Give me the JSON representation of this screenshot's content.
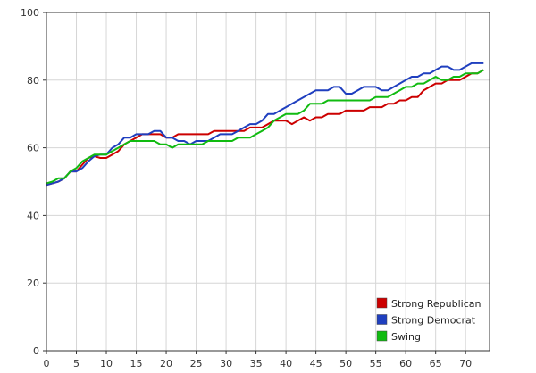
{
  "chart_data": {
    "type": "line",
    "title": "",
    "xlabel": "",
    "ylabel": "",
    "xlim": [
      0,
      74
    ],
    "ylim": [
      0,
      100
    ],
    "x_ticks": [
      0,
      5,
      10,
      15,
      20,
      25,
      30,
      35,
      40,
      45,
      50,
      55,
      60,
      65,
      70
    ],
    "y_ticks": [
      0,
      20,
      40,
      60,
      80,
      100
    ],
    "grid": true,
    "legend_position": "bottom-right",
    "series": [
      {
        "name": "Strong Republican",
        "color": "#cc0000",
        "x": [
          0,
          1,
          2,
          3,
          4,
          5,
          6,
          7,
          8,
          9,
          10,
          11,
          12,
          13,
          14,
          15,
          16,
          17,
          18,
          19,
          20,
          21,
          22,
          23,
          24,
          25,
          26,
          27,
          28,
          29,
          30,
          31,
          32,
          33,
          34,
          35,
          36,
          37,
          38,
          39,
          40,
          41,
          42,
          43,
          44,
          45,
          46,
          47,
          48,
          49,
          50,
          51,
          52,
          53,
          54,
          55,
          56,
          57,
          58,
          59,
          60,
          61,
          62,
          63,
          64,
          65,
          66,
          67,
          68,
          69,
          70,
          71,
          72,
          73
        ],
        "values": [
          49,
          49.5,
          50,
          51,
          53,
          53,
          55,
          57,
          57.5,
          57,
          57,
          58,
          59,
          61,
          62,
          63,
          64,
          64,
          64,
          64,
          63,
          63,
          64,
          64,
          64,
          64,
          64,
          64,
          65,
          65,
          65,
          65,
          65,
          65,
          66,
          66,
          66,
          67,
          68,
          68,
          68,
          67,
          68,
          69,
          68,
          69,
          69,
          70,
          70,
          70,
          71,
          71,
          71,
          71,
          72,
          72,
          72,
          73,
          73,
          74,
          74,
          75,
          75,
          77,
          78,
          79,
          79,
          80,
          80,
          80,
          81,
          82,
          82,
          83
        ]
      },
      {
        "name": "Strong Democrat",
        "color": "#1f3fbf",
        "x": [
          0,
          1,
          2,
          3,
          4,
          5,
          6,
          7,
          8,
          9,
          10,
          11,
          12,
          13,
          14,
          15,
          16,
          17,
          18,
          19,
          20,
          21,
          22,
          23,
          24,
          25,
          26,
          27,
          28,
          29,
          30,
          31,
          32,
          33,
          34,
          35,
          36,
          37,
          38,
          39,
          40,
          41,
          42,
          43,
          44,
          45,
          46,
          47,
          48,
          49,
          50,
          51,
          52,
          53,
          54,
          55,
          56,
          57,
          58,
          59,
          60,
          61,
          62,
          63,
          64,
          65,
          66,
          67,
          68,
          69,
          70,
          71,
          72,
          73
        ],
        "values": [
          49,
          49.5,
          50,
          51,
          53,
          53,
          54,
          56,
          57.5,
          58,
          58,
          60,
          61,
          63,
          63,
          64,
          64,
          64,
          65,
          65,
          63,
          63,
          62,
          62,
          61,
          62,
          62,
          62,
          63,
          64,
          64,
          64,
          65,
          66,
          67,
          67,
          68,
          70,
          70,
          71,
          72,
          73,
          74,
          75,
          76,
          77,
          77,
          77,
          78,
          78,
          76,
          76,
          77,
          78,
          78,
          78,
          77,
          77,
          78,
          79,
          80,
          81,
          81,
          82,
          82,
          83,
          84,
          84,
          83,
          83,
          84,
          85,
          85,
          85
        ]
      },
      {
        "name": "Swing",
        "color": "#11bb11",
        "x": [
          0,
          1,
          2,
          3,
          4,
          5,
          6,
          7,
          8,
          9,
          10,
          11,
          12,
          13,
          14,
          15,
          16,
          17,
          18,
          19,
          20,
          21,
          22,
          23,
          24,
          25,
          26,
          27,
          28,
          29,
          30,
          31,
          32,
          33,
          34,
          35,
          36,
          37,
          38,
          39,
          40,
          41,
          42,
          43,
          44,
          45,
          46,
          47,
          48,
          49,
          50,
          51,
          52,
          53,
          54,
          55,
          56,
          57,
          58,
          59,
          60,
          61,
          62,
          63,
          64,
          65,
          66,
          67,
          68,
          69,
          70,
          71,
          72,
          73
        ],
        "values": [
          49.5,
          50,
          51,
          51,
          53,
          54,
          56,
          57,
          58,
          58,
          58,
          59,
          60,
          61,
          62,
          62,
          62,
          62,
          62,
          61,
          61,
          60,
          61,
          61,
          61,
          61,
          61,
          62,
          62,
          62,
          62,
          62,
          63,
          63,
          63,
          64,
          65,
          66,
          68,
          69,
          70,
          70,
          70,
          71,
          73,
          73,
          73,
          74,
          74,
          74,
          74,
          74,
          74,
          74,
          74,
          75,
          75,
          75,
          76,
          77,
          78,
          78,
          79,
          79,
          80,
          81,
          80,
          80,
          81,
          81,
          82,
          82,
          82,
          83
        ]
      }
    ]
  }
}
